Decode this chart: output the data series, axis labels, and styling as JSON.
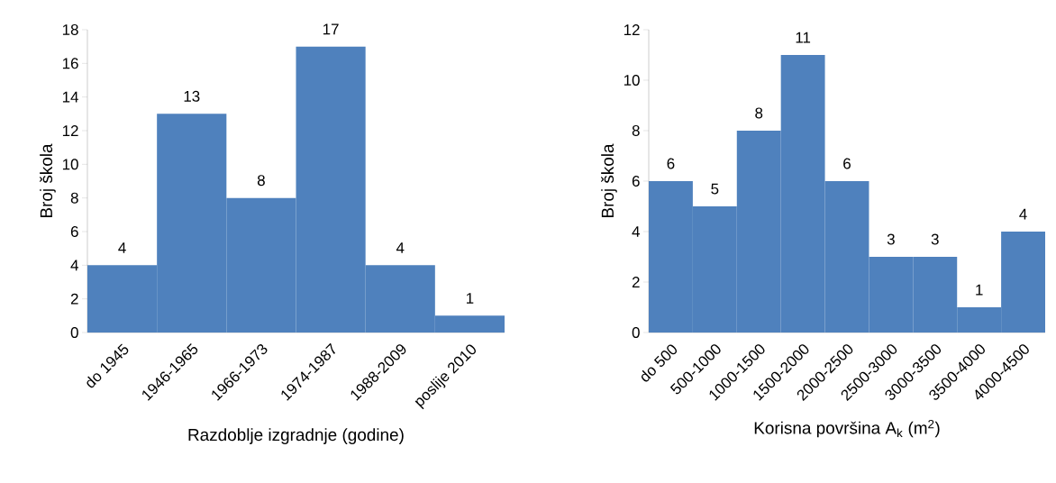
{
  "chart_data": [
    {
      "type": "bar",
      "categories": [
        "do 1945",
        "1946-1965",
        "1966-1973",
        "1974-1987",
        "1988-2009",
        "poslije 2010"
      ],
      "values": [
        4,
        13,
        8,
        17,
        4,
        1
      ],
      "color": "#4f81bd",
      "xlabel": "Razdoblje izgradnje (godine)",
      "ylabel": "Broj škola",
      "ylim": [
        0,
        18
      ],
      "yticks": [
        0,
        2,
        4,
        6,
        8,
        10,
        12,
        14,
        16,
        18
      ],
      "data_labels": true
    },
    {
      "type": "bar",
      "categories": [
        "do 500",
        "500-1000",
        "1000-1500",
        "1500-2000",
        "2000-2500",
        "2500-3000",
        "3000-3500",
        "3500-4000",
        "4000-4500"
      ],
      "values": [
        6,
        5,
        8,
        11,
        6,
        3,
        3,
        1,
        4
      ],
      "color": "#4f81bd",
      "xlabel": "Korisna površina A$_{k}$ (m$^{2}$)",
      "ylabel": "Broj škola",
      "ylim": [
        0,
        12
      ],
      "yticks": [
        0,
        2,
        4,
        6,
        8,
        10,
        12
      ],
      "data_labels": true
    }
  ]
}
